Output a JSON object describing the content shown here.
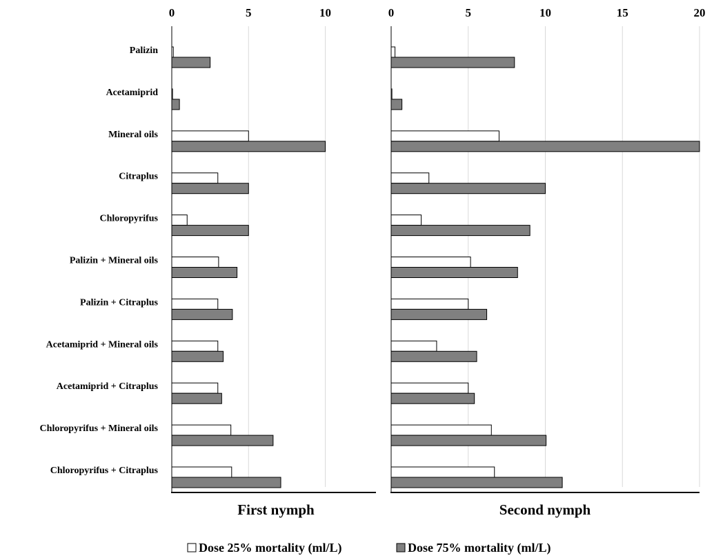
{
  "chart_data": [
    {
      "type": "bar",
      "orientation": "horizontal",
      "title": "First nymph",
      "categories": [
        "Palizin",
        "Acetamiprid",
        "Mineral oils",
        "Citraplus",
        "Chloropyrifus",
        "Palizin + Mineral oils",
        "Palizin  + Citraplus",
        "Acetamiprid + Mineral oils",
        "Acetamiprid + Citraplus",
        "Chloropyrifus + Mineral oils",
        "Chloropyrifus + Citraplus"
      ],
      "series": [
        {
          "name": "Dose 25% mortality (ml/L)",
          "color": "#ffffff",
          "values": [
            0.1,
            0.05,
            5.0,
            3.0,
            1.0,
            3.05,
            3.0,
            3.0,
            3.0,
            3.85,
            3.9
          ]
        },
        {
          "name": "Dose 75% mortality (ml/L)",
          "color": "#808080",
          "values": [
            2.5,
            0.5,
            10.0,
            5.0,
            5.0,
            4.25,
            3.95,
            3.35,
            3.25,
            6.6,
            7.1
          ]
        }
      ],
      "xlim": [
        0,
        13.3
      ],
      "xticks": [
        0,
        5,
        10
      ],
      "grid": true
    },
    {
      "type": "bar",
      "orientation": "horizontal",
      "title": "Second nymph",
      "categories": [
        "Palizin",
        "Acetamiprid",
        "Mineral oils",
        "Citraplus",
        "Chloropyrifus",
        "Palizin + Mineral oils",
        "Palizin  + Citraplus",
        "Acetamiprid + Mineral oils",
        "Acetamiprid + Citraplus",
        "Chloropyrifus + Mineral oils",
        "Chloropyrifus + Citraplus"
      ],
      "series": [
        {
          "name": "Dose 25% mortality (ml/L)",
          "color": "#ffffff",
          "values": [
            0.25,
            0.05,
            7.0,
            2.45,
            1.95,
            5.15,
            5.0,
            2.95,
            5.0,
            6.5,
            6.7
          ]
        },
        {
          "name": "Dose 75% mortality (ml/L)",
          "color": "#808080",
          "values": [
            8.0,
            0.7,
            20.0,
            10.0,
            9.0,
            8.2,
            6.2,
            5.55,
            5.4,
            10.05,
            11.1
          ]
        }
      ],
      "xlim": [
        0,
        20
      ],
      "xticks": [
        0,
        5,
        10,
        15,
        20
      ],
      "grid": true
    }
  ],
  "legend": {
    "placement": "bottom",
    "items": [
      {
        "label": "Dose 25% mortality (ml/L)",
        "color": "#ffffff"
      },
      {
        "label": "Dose 75% mortality (ml/L)",
        "color": "#808080"
      }
    ]
  }
}
